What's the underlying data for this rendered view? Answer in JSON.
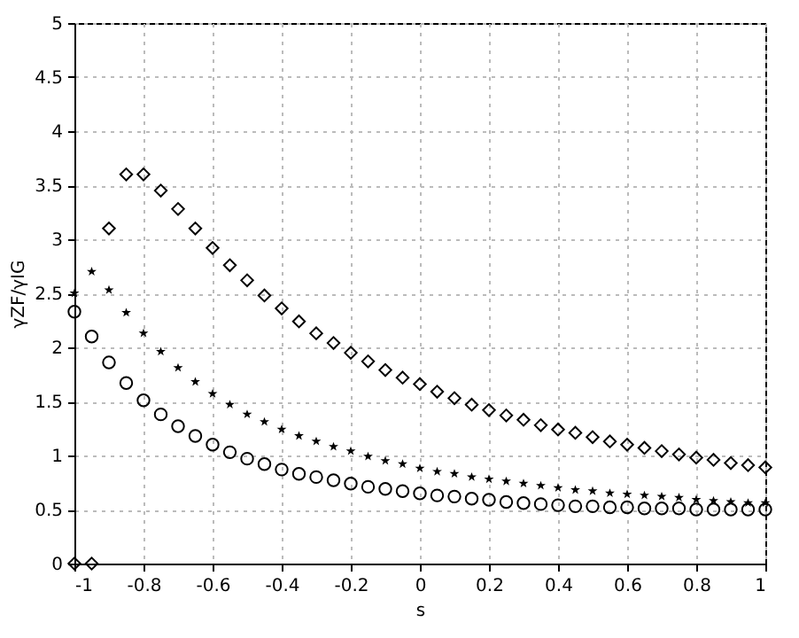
{
  "chart_data": {
    "type": "scatter",
    "xlabel": "s",
    "ylabel": "γZF/γIG",
    "x": [
      -1,
      -0.95,
      -0.9,
      -0.85,
      -0.8,
      -0.75,
      -0.7,
      -0.65,
      -0.6,
      -0.55,
      -0.5,
      -0.45,
      -0.4,
      -0.35,
      -0.3,
      -0.25,
      -0.2,
      -0.15,
      -0.1,
      -0.05,
      0,
      0.05,
      0.1,
      0.15,
      0.2,
      0.25,
      0.3,
      0.35,
      0.4,
      0.45,
      0.5,
      0.55,
      0.6,
      0.65,
      0.7,
      0.75,
      0.8,
      0.85,
      0.9,
      0.95,
      1
    ],
    "series": [
      {
        "color": "#000000",
        "marker": "diamond",
        "values": [
          0,
          0,
          3.1,
          3.6,
          3.6,
          3.45,
          3.28,
          3.1,
          2.92,
          2.76,
          2.62,
          2.48,
          2.36,
          2.24,
          2.13,
          2.04,
          1.95,
          1.87,
          1.79,
          1.72,
          1.66,
          1.59,
          1.53,
          1.47,
          1.42,
          1.37,
          1.33,
          1.28,
          1.24,
          1.21,
          1.17,
          1.13,
          1.1,
          1.07,
          1.04,
          1.01,
          0.98,
          0.96,
          0.93,
          0.91,
          0.89
        ]
      },
      {
        "color": "#000000",
        "marker": "star",
        "values": [
          2.5,
          2.7,
          2.53,
          2.32,
          2.13,
          1.96,
          1.81,
          1.68,
          1.57,
          1.47,
          1.38,
          1.31,
          1.24,
          1.18,
          1.13,
          1.08,
          1.04,
          0.99,
          0.95,
          0.92,
          0.88,
          0.85,
          0.83,
          0.8,
          0.78,
          0.76,
          0.74,
          0.72,
          0.7,
          0.68,
          0.67,
          0.65,
          0.64,
          0.63,
          0.62,
          0.61,
          0.59,
          0.58,
          0.57,
          0.56,
          0.56
        ]
      },
      {
        "color": "#000000",
        "marker": "circle",
        "values": [
          2.33,
          2.1,
          1.86,
          1.67,
          1.51,
          1.38,
          1.27,
          1.18,
          1.1,
          1.03,
          0.97,
          0.92,
          0.87,
          0.83,
          0.8,
          0.77,
          0.74,
          0.71,
          0.69,
          0.67,
          0.65,
          0.63,
          0.62,
          0.6,
          0.59,
          0.57,
          0.56,
          0.55,
          0.54,
          0.53,
          0.53,
          0.52,
          0.52,
          0.51,
          0.51,
          0.51,
          0.5,
          0.5,
          0.5,
          0.5,
          0.5
        ]
      }
    ],
    "xlim": [
      -1,
      1
    ],
    "xticks": [
      -1,
      -0.8,
      -0.6,
      -0.4,
      -0.2,
      0,
      0.2,
      0.4,
      0.6,
      0.8,
      1
    ],
    "ylim": [
      0,
      5
    ],
    "yticks": [
      0,
      0.5,
      1,
      1.5,
      2,
      2.5,
      3,
      3.5,
      4,
      4.5,
      5
    ],
    "grid": true
  }
}
